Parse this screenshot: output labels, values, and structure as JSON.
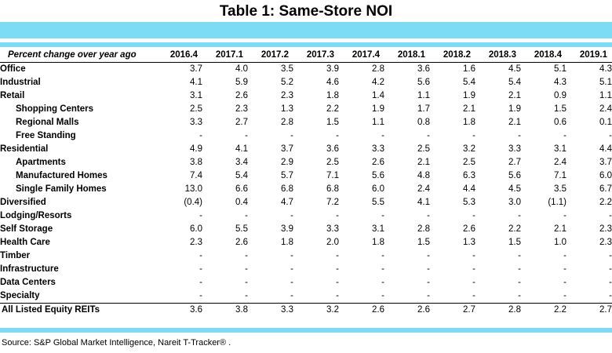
{
  "title": "Table 1:  Same-Store NOI",
  "table": {
    "header_label": "Percent change over year ago",
    "columns": [
      "2016.4",
      "2017.1",
      "2017.2",
      "2017.3",
      "2017.4",
      "2018.1",
      "2018.2",
      "2018.3",
      "2018.4",
      "2019.1"
    ],
    "rows": [
      {
        "label": "Office",
        "sub": false,
        "values": [
          "3.7",
          "4.0",
          "3.5",
          "3.9",
          "2.8",
          "3.6",
          "1.6",
          "4.5",
          "5.1",
          "4.3"
        ]
      },
      {
        "label": "Industrial",
        "sub": false,
        "values": [
          "4.1",
          "5.9",
          "5.2",
          "4.6",
          "4.2",
          "5.6",
          "5.4",
          "5.4",
          "4.3",
          "5.1"
        ]
      },
      {
        "label": "Retail",
        "sub": false,
        "values": [
          "3.1",
          "2.6",
          "2.3",
          "1.8",
          "1.4",
          "1.1",
          "1.9",
          "2.1",
          "0.9",
          "1.1"
        ]
      },
      {
        "label": "Shopping Centers",
        "sub": true,
        "values": [
          "2.5",
          "2.3",
          "1.3",
          "2.2",
          "1.9",
          "1.7",
          "2.1",
          "1.9",
          "1.5",
          "2.4"
        ]
      },
      {
        "label": "Regional Malls",
        "sub": true,
        "values": [
          "3.3",
          "2.7",
          "2.8",
          "1.5",
          "1.1",
          "0.8",
          "1.8",
          "2.1",
          "0.6",
          "0.1"
        ]
      },
      {
        "label": "Free Standing",
        "sub": true,
        "values": [
          "-",
          "-",
          "-",
          "-",
          "-",
          "-",
          "-",
          "-",
          "-",
          "-"
        ]
      },
      {
        "label": "Residential",
        "sub": false,
        "values": [
          "4.9",
          "4.1",
          "3.7",
          "3.6",
          "3.3",
          "2.5",
          "3.2",
          "3.3",
          "3.1",
          "4.4"
        ]
      },
      {
        "label": "Apartments",
        "sub": true,
        "values": [
          "3.8",
          "3.4",
          "2.9",
          "2.5",
          "2.6",
          "2.1",
          "2.5",
          "2.7",
          "2.4",
          "3.7"
        ]
      },
      {
        "label": "Manufactured Homes",
        "sub": true,
        "values": [
          "7.4",
          "5.4",
          "5.7",
          "7.1",
          "5.6",
          "4.8",
          "6.3",
          "5.6",
          "7.1",
          "6.0"
        ]
      },
      {
        "label": "Single Family Homes",
        "sub": true,
        "values": [
          "13.0",
          "6.6",
          "6.8",
          "6.8",
          "6.0",
          "2.4",
          "4.4",
          "4.5",
          "3.5",
          "6.7"
        ]
      },
      {
        "label": "Diversified",
        "sub": false,
        "values": [
          "(0.4)",
          "0.4",
          "4.7",
          "7.2",
          "5.5",
          "4.1",
          "5.3",
          "3.0",
          "(1.1)",
          "2.2"
        ]
      },
      {
        "label": "Lodging/Resorts",
        "sub": false,
        "values": [
          "-",
          "-",
          "-",
          "-",
          "-",
          "-",
          "-",
          "-",
          "-",
          "-"
        ]
      },
      {
        "label": "Self Storage",
        "sub": false,
        "values": [
          "6.0",
          "5.5",
          "3.9",
          "3.3",
          "3.1",
          "2.8",
          "2.6",
          "2.2",
          "2.1",
          "2.3"
        ]
      },
      {
        "label": "Health Care",
        "sub": false,
        "values": [
          "2.3",
          "2.6",
          "1.8",
          "2.0",
          "1.8",
          "1.5",
          "1.3",
          "1.5",
          "1.0",
          "2.3"
        ]
      },
      {
        "label": "Timber",
        "sub": false,
        "values": [
          "-",
          "-",
          "-",
          "-",
          "-",
          "-",
          "-",
          "-",
          "-",
          "-"
        ]
      },
      {
        "label": "Infrastructure",
        "sub": false,
        "values": [
          "-",
          "-",
          "-",
          "-",
          "-",
          "-",
          "-",
          "-",
          "-",
          "-"
        ]
      },
      {
        "label": "Data Centers",
        "sub": false,
        "values": [
          "-",
          "-",
          "-",
          "-",
          "-",
          "-",
          "-",
          "-",
          "-",
          "-"
        ]
      },
      {
        "label": "Specialty",
        "sub": false,
        "values": [
          "-",
          "-",
          "-",
          "-",
          "-",
          "-",
          "-",
          "-",
          "-",
          "-"
        ]
      }
    ],
    "total": {
      "label": "All Listed Equity REITs",
      "values": [
        "3.6",
        "3.8",
        "3.3",
        "3.2",
        "2.6",
        "2.6",
        "2.7",
        "2.8",
        "2.2",
        "2.7"
      ]
    }
  },
  "source": "Source: S&P Global Market Intelligence, Nareit T-Tracker® .",
  "colors": {
    "band": "#7ddcf5",
    "text": "#000000"
  }
}
